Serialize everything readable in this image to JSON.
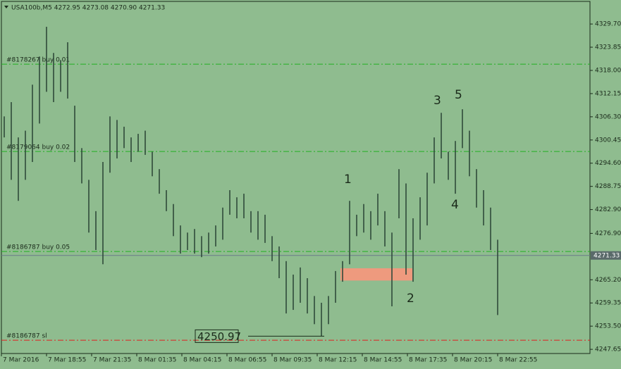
{
  "chart_data": {
    "type": "bar-hl",
    "header": "USA100b,M5  4272.95 4273.08 4270.90 4271.33",
    "background": "#8fbc8f",
    "color": "#2f4a3a",
    "x": [
      2,
      7,
      12,
      17,
      22,
      27,
      32,
      37,
      42,
      47,
      52,
      57,
      62,
      67,
      72,
      77,
      82,
      87,
      92,
      97,
      102,
      107,
      112,
      117,
      122,
      127,
      132,
      137,
      142,
      147,
      152,
      157,
      162,
      167,
      172,
      177,
      182,
      187,
      192,
      197,
      202,
      207,
      212,
      217,
      222,
      227,
      232,
      237,
      242,
      247,
      252,
      257,
      262,
      267,
      272,
      277,
      282,
      287,
      292,
      297,
      302,
      307,
      312,
      317,
      322,
      327,
      332,
      337,
      342,
      347,
      352
    ],
    "high": [
      4306.4,
      4310.0,
      4301.1,
      4302.8,
      4314.4,
      4321.5,
      4329.0,
      4322.4,
      4320.6,
      4325.1,
      4309.1,
      4298.4,
      4290.4,
      4282.5,
      4294.9,
      4306.4,
      4305.5,
      4303.8,
      4301.1,
      4302.0,
      4302.8,
      4297.5,
      4293.1,
      4287.8,
      4284.3,
      4278.9,
      4277.1,
      4278.0,
      4276.2,
      4277.1,
      4278.9,
      4283.4,
      4287.8,
      4286.0,
      4286.9,
      4282.5,
      4282.5,
      4281.6,
      4276.2,
      4273.6,
      4269.9,
      4266.5,
      4268.3,
      4265.6,
      4261.1,
      4259.4,
      4261.1,
      4267.4,
      4269.9,
      4285.1,
      4281.6,
      4284.3,
      4282.5,
      4286.9,
      4282.5,
      4277.1,
      4293.1,
      4289.5,
      4280.7,
      4286.0,
      4292.2,
      4301.1,
      4307.3,
      4297.5,
      4300.2,
      4308.2,
      4302.8,
      4293.1,
      4287.8,
      4283.4,
      4275.3
    ],
    "low": [
      4301.1,
      4290.4,
      4285.1,
      4290.4,
      4294.9,
      4304.6,
      4312.6,
      4310.0,
      4312.6,
      4310.9,
      4294.9,
      4289.5,
      4277.1,
      4272.7,
      4269.1,
      4292.2,
      4295.8,
      4298.4,
      4294.9,
      4297.5,
      4296.7,
      4291.3,
      4286.9,
      4282.5,
      4276.2,
      4271.8,
      4272.7,
      4271.8,
      4270.9,
      4271.8,
      4273.6,
      4275.3,
      4281.6,
      4280.7,
      4280.7,
      4277.1,
      4275.3,
      4274.5,
      4269.9,
      4265.6,
      4256.7,
      4257.6,
      4259.4,
      4256.7,
      4254.0,
      4251.0,
      4254.0,
      4259.4,
      4264.7,
      4269.1,
      4276.2,
      4277.1,
      4275.3,
      4278.9,
      4273.6,
      4258.5,
      4280.7,
      4266.5,
      4264.7,
      4275.3,
      4278.9,
      4289.5,
      4295.8,
      4290.4,
      4286.9,
      4298.4,
      4291.3,
      4283.4,
      4278.9,
      4272.7,
      4256.3
    ],
    "xlim": [
      0,
      417.5
    ],
    "ylim": [
      4246.6,
      4335.4
    ],
    "xticks": [
      {
        "value": 0,
        "label": "7 Mar 2016"
      },
      {
        "value": 32,
        "label": "7 Mar 18:55"
      },
      {
        "value": 64,
        "label": "7 Mar 21:35"
      },
      {
        "value": 96,
        "label": "8 Mar 01:35"
      },
      {
        "value": 128,
        "label": "8 Mar 04:15"
      },
      {
        "value": 160,
        "label": "8 Mar 06:55"
      },
      {
        "value": 192,
        "label": "8 Mar 09:35"
      },
      {
        "value": 224,
        "label": "8 Mar 12:15"
      },
      {
        "value": 256,
        "label": "8 Mar 14:55"
      },
      {
        "value": 288,
        "label": "8 Mar 17:35"
      },
      {
        "value": 320,
        "label": "8 Mar 20:15"
      },
      {
        "value": 352,
        "label": "8 Mar 22:55"
      }
    ],
    "yticks": [
      {
        "value": 4329.7,
        "label": "4329.70"
      },
      {
        "value": 4323.85,
        "label": "4323.85"
      },
      {
        "value": 4318,
        "label": "4318.00"
      },
      {
        "value": 4312.15,
        "label": "4312.15"
      },
      {
        "value": 4306.3,
        "label": "4306.30"
      },
      {
        "value": 4300.45,
        "label": "4300.45"
      },
      {
        "value": 4294.6,
        "label": "4294.60"
      },
      {
        "value": 4288.75,
        "label": "4288.75"
      },
      {
        "value": 4282.9,
        "label": "4282.90"
      },
      {
        "value": 4276.9,
        "label": "4276.90"
      },
      {
        "value": 4265.2,
        "label": "4265.20"
      },
      {
        "value": 4259.35,
        "label": "4259.35"
      },
      {
        "value": 4253.5,
        "label": "4253.50"
      },
      {
        "value": 4247.65,
        "label": "4247.65"
      }
    ],
    "current_price": 4271.33,
    "levels": [
      {
        "label": "#8178267 buy 0.01",
        "value": 4319.58,
        "color": "#22b022"
      },
      {
        "label": "#8179064 buy 0.02",
        "value": 4297.55,
        "color": "#22b022"
      },
      {
        "label": "#8186787 buy 0.05",
        "value": 4272.33,
        "color": "#22b022"
      },
      {
        "label": "#8186787 sl",
        "value": 4249.95,
        "color": "#e02020"
      }
    ],
    "zone": {
      "x": [
        240.5,
        291.5
      ],
      "y": [
        4265.0,
        4268.1
      ],
      "color": "#ee9a7e"
    },
    "low_label": {
      "value": 4250.97,
      "x": 229
    },
    "annotations": [
      "1",
      "2",
      "3",
      "4",
      "5"
    ]
  }
}
